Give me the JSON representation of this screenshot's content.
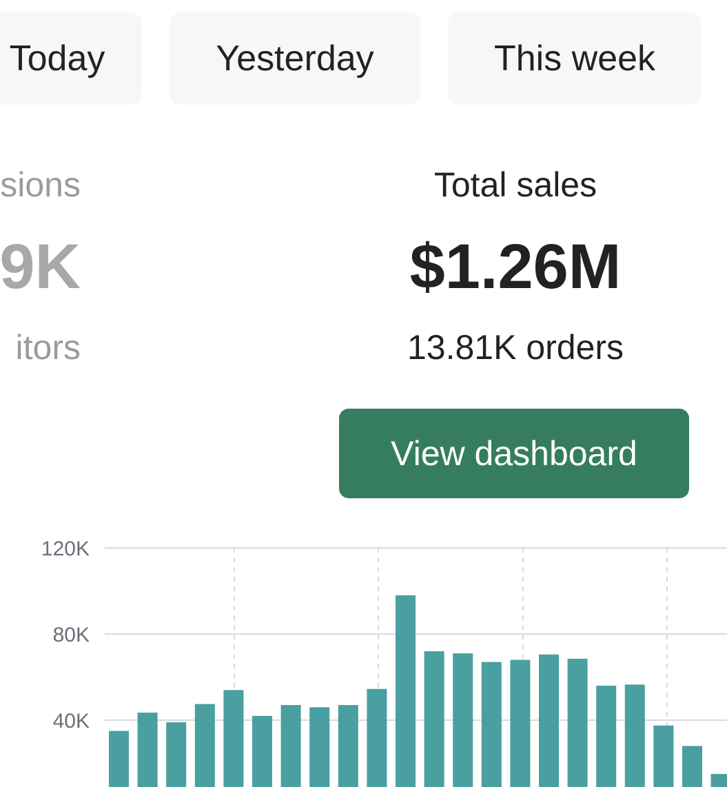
{
  "tabs": [
    {
      "label": "Today"
    },
    {
      "label": "Yesterday"
    },
    {
      "label": "This week"
    }
  ],
  "sessions": {
    "label": "sions",
    "value": "9K",
    "sub": "itors"
  },
  "total_sales": {
    "label": "Total sales",
    "value": "$1.26M",
    "orders": "13.81K orders"
  },
  "view_dashboard_label": "View dashboard",
  "colors": {
    "accent": "#367d60",
    "bar": "#4a9fa0",
    "grid": "#d9dade"
  },
  "chart_data": {
    "type": "bar",
    "values": [
      35000,
      43500,
      39000,
      47500,
      54000,
      42000,
      47000,
      46000,
      47000,
      54500,
      98000,
      72000,
      71000,
      67000,
      68000,
      70500,
      68500,
      56000,
      56500,
      37500,
      28000,
      15000
    ],
    "yticks": [
      {
        "value": 120000,
        "label": "120K"
      },
      {
        "value": 80000,
        "label": "80K"
      },
      {
        "value": 40000,
        "label": "40K"
      }
    ],
    "ylim": [
      0,
      120000
    ],
    "grid": true,
    "xlabel": "",
    "ylabel": "",
    "title": ""
  }
}
